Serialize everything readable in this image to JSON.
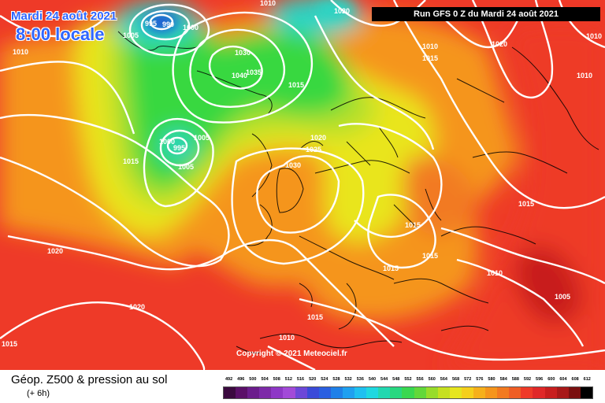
{
  "header": {
    "date_text": "Mardi 24 août 2021",
    "time_text": "8:00 locale",
    "run_text": "Run GFS 0 Z du Mardi 24 août 2021"
  },
  "copyright": "Copyright © 2021 Meteociel.fr",
  "footer": {
    "title": "Géop. Z500 & pression au sol",
    "step": "(+ 6h)"
  },
  "colors": {
    "sea": "#6b3aa7",
    "red": "#ee3a28",
    "orange_red": "#f06a22",
    "orange": "#f5951c",
    "yellow": "#e9e51f",
    "light_green": "#b6e02a",
    "green": "#39d840",
    "cyan": "#29d5c5",
    "blue": "#1f6ed0",
    "isobar": "#ffffff"
  },
  "scale": [
    {
      "label": "492",
      "color": "#3b0a3f"
    },
    {
      "label": "496",
      "color": "#5a1068"
    },
    {
      "label": "500",
      "color": "#6b1d8c"
    },
    {
      "label": "504",
      "color": "#7d2aa8"
    },
    {
      "label": "508",
      "color": "#8e37c6"
    },
    {
      "label": "512",
      "color": "#a24ad8"
    },
    {
      "label": "516",
      "color": "#6c47d8"
    },
    {
      "label": "520",
      "color": "#3a4ad8"
    },
    {
      "label": "524",
      "color": "#2a5fe0"
    },
    {
      "label": "528",
      "color": "#1f80e8"
    },
    {
      "label": "532",
      "color": "#1fa0f0"
    },
    {
      "label": "536",
      "color": "#1fc0f0"
    },
    {
      "label": "540",
      "color": "#1fd8e0"
    },
    {
      "label": "544",
      "color": "#22d8b0"
    },
    {
      "label": "548",
      "color": "#28d880"
    },
    {
      "label": "552",
      "color": "#39d850"
    },
    {
      "label": "556",
      "color": "#62d83a"
    },
    {
      "label": "560",
      "color": "#98dc2a"
    },
    {
      "label": "564",
      "color": "#c6e020"
    },
    {
      "label": "568",
      "color": "#e6e51f"
    },
    {
      "label": "572",
      "color": "#f5cf1c"
    },
    {
      "label": "576",
      "color": "#f6b01b"
    },
    {
      "label": "580",
      "color": "#f5951c"
    },
    {
      "label": "584",
      "color": "#f27a20"
    },
    {
      "label": "588",
      "color": "#ef5e25"
    },
    {
      "label": "592",
      "color": "#ee3a28"
    },
    {
      "label": "596",
      "color": "#e02828"
    },
    {
      "label": "600",
      "color": "#c81e1e"
    },
    {
      "label": "604",
      "color": "#a81818"
    },
    {
      "label": "608",
      "color": "#7a1010"
    },
    {
      "label": "612",
      "color": "#000000"
    }
  ],
  "isobar_labels": [
    {
      "text": "1010"
    },
    {
      "text": "1005"
    },
    {
      "text": "995"
    },
    {
      "text": "990"
    },
    {
      "text": "1000"
    },
    {
      "text": "1020"
    },
    {
      "text": "1030"
    },
    {
      "text": "1035"
    },
    {
      "text": "1040"
    },
    {
      "text": "1015"
    },
    {
      "text": "1010"
    },
    {
      "text": "1000"
    },
    {
      "text": "995"
    },
    {
      "text": "1005"
    },
    {
      "text": "1015"
    },
    {
      "text": "1030"
    },
    {
      "text": "1025"
    },
    {
      "text": "1020"
    },
    {
      "text": "1015"
    },
    {
      "text": "1015"
    },
    {
      "text": "1015"
    },
    {
      "text": "1010"
    },
    {
      "text": "1005"
    },
    {
      "text": "1020"
    },
    {
      "text": "1020"
    },
    {
      "text": "1015"
    },
    {
      "text": "1015"
    },
    {
      "text": "1010"
    },
    {
      "text": "1010"
    },
    {
      "text": "1010"
    },
    {
      "text": "1015"
    },
    {
      "text": "1010"
    },
    {
      "text": "1005"
    },
    {
      "text": "1020"
    },
    {
      "text": "1015"
    }
  ]
}
